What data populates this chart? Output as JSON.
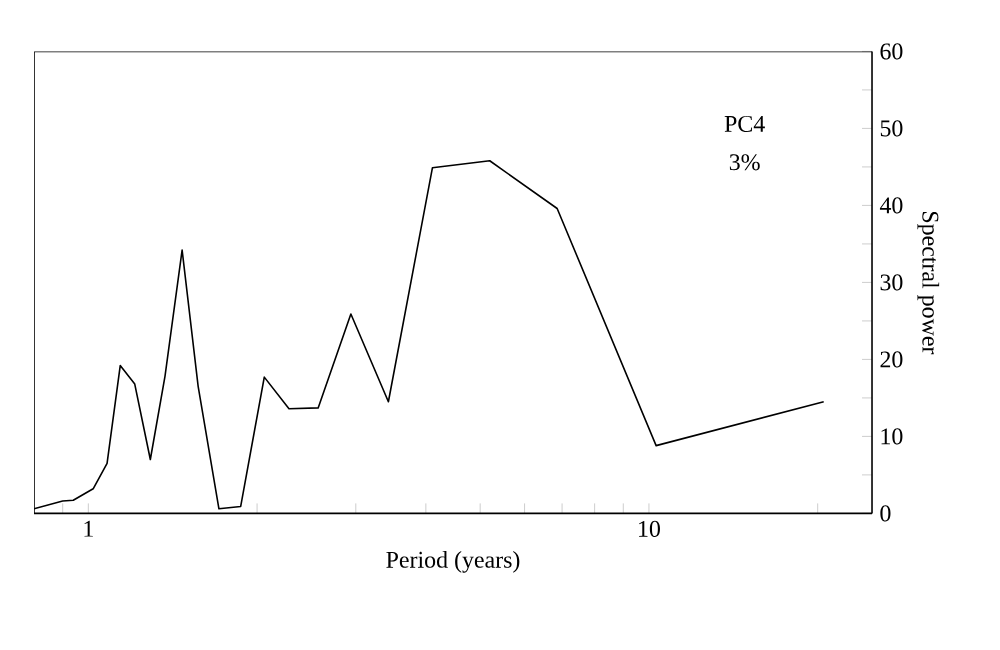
{
  "chart_data": {
    "type": "line",
    "xlabel": "Period (years)",
    "ylabel": "Spectral power",
    "annotations": [
      "PC4",
      "3%"
    ],
    "log": "x",
    "color": "#000000",
    "x": [
      0.8,
      0.9,
      0.94,
      1.02,
      1.08,
      1.14,
      1.21,
      1.29,
      1.37,
      1.47,
      1.57,
      1.71,
      1.87,
      2.06,
      2.28,
      2.57,
      2.94,
      3.43,
      4.11,
      5.2,
      6.86,
      10.3,
      20.5
    ],
    "values": [
      0.6,
      1.6,
      1.7,
      3.2,
      6.5,
      19.2,
      16.8,
      7.0,
      17.8,
      34.2,
      16.5,
      0.6,
      0.9,
      17.7,
      13.6,
      13.7,
      25.9,
      14.5,
      44.9,
      45.8,
      39.6,
      8.8,
      14.5
    ],
    "xlim": [
      0.8,
      25
    ],
    "ylim": [
      0,
      60
    ],
    "xticks": [
      {
        "value": 0.9,
        "label": null
      },
      1,
      {
        "value": 2,
        "label": null
      },
      {
        "value": 3,
        "label": null
      },
      {
        "value": 4,
        "label": null
      },
      {
        "value": 5,
        "label": null
      },
      {
        "value": 6,
        "label": null
      },
      {
        "value": 7,
        "label": null
      },
      {
        "value": 8,
        "label": null
      },
      {
        "value": 9,
        "label": null
      },
      10,
      {
        "value": 20,
        "label": null
      }
    ],
    "yticks": [
      0,
      {
        "value": 5,
        "label": null
      },
      10,
      {
        "value": 15,
        "label": null
      },
      20,
      {
        "value": 25,
        "label": null
      },
      30,
      {
        "value": 35,
        "label": null
      },
      40,
      {
        "value": 45,
        "label": null
      },
      50,
      {
        "value": 55,
        "label": null
      },
      60
    ]
  }
}
